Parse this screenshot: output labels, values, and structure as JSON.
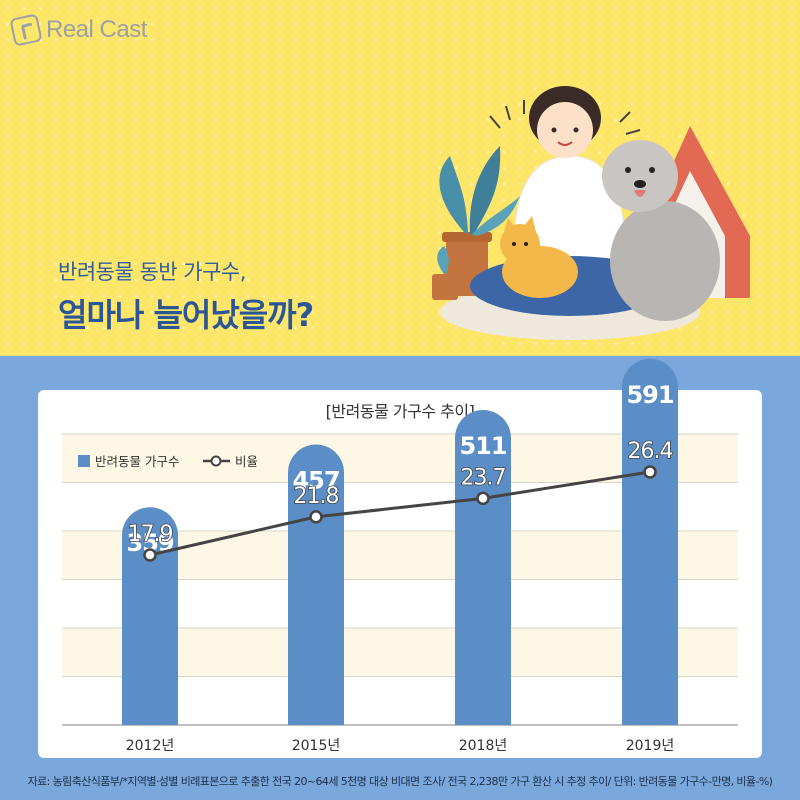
{
  "logo": {
    "text": "Real Cast"
  },
  "headline": {
    "subtitle": "반려동물 동반 가구수,",
    "title": "얼마나 늘어났을까?"
  },
  "chart_data": {
    "type": "bar",
    "title": "[반려동물 가구수 추이]",
    "categories": [
      "2012년",
      "2015년",
      "2018년",
      "2019년"
    ],
    "series": [
      {
        "name": "반려동물 가구수",
        "type": "bar",
        "values": [
          359,
          457,
          511,
          591
        ],
        "color": "#5b8ec6"
      },
      {
        "name": "비율",
        "type": "line",
        "values": [
          17.9,
          21.8,
          23.7,
          26.4
        ],
        "color": "#444444"
      }
    ],
    "grid": true,
    "legend": "top-left"
  },
  "source": "자료: 농림축산식품부/*지역별·성별 비례표본으로 추출한 전국 20~64세 5천명 대상 비대면 조사/ 전국 2,238만 가구 환산 시 추정 추이/ 단위: 반려동물 가구수-만명, 비율-%)",
  "colors": {
    "top_bg": "#fde66a",
    "bottom_bg": "#7aa7dc",
    "accent": "#2a5597",
    "bar": "#5b8ec6",
    "stripe": "#fdf8e6"
  }
}
